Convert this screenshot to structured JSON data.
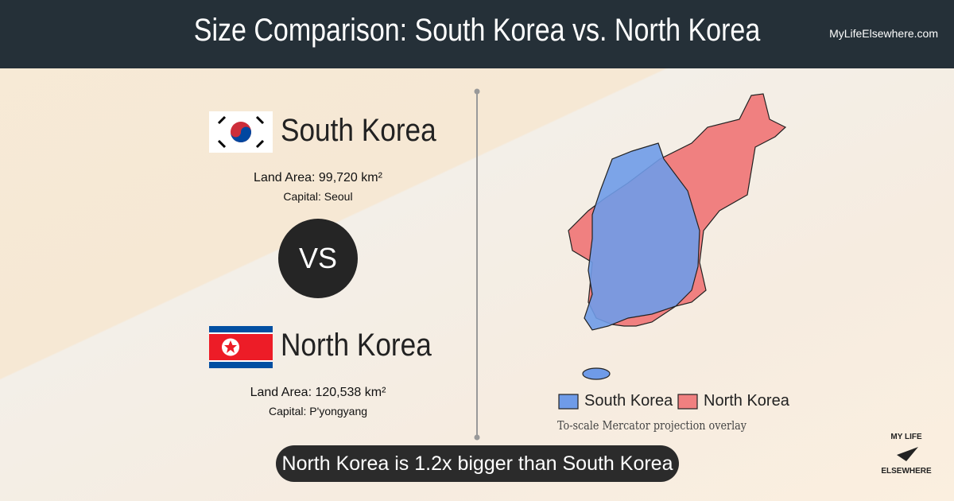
{
  "header": {
    "title": "Size Comparison: South Korea vs. North Korea",
    "site": "MyLifeElsewhere.com"
  },
  "countries": [
    {
      "name": "South Korea",
      "land_area": "Land Area: 99,720 km²",
      "capital": "Capital: Seoul"
    },
    {
      "name": "North Korea",
      "land_area": "Land Area: 120,538 km²",
      "capital": "Capital: P'yongyang"
    }
  ],
  "vs": "VS",
  "legend": [
    "South Korea",
    "North Korea"
  ],
  "map_note": "To-scale Mercator projection overlay",
  "summary": "North Korea is 1.2x bigger than South Korea",
  "logo": {
    "top": "MY LIFE",
    "bottom": "ELSEWHERE"
  }
}
